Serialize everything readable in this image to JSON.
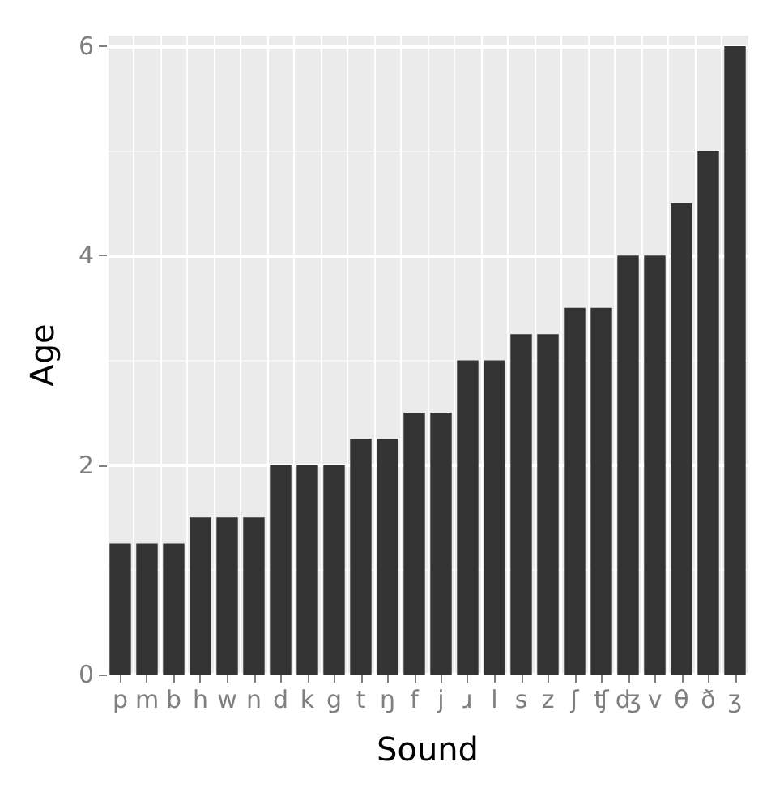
{
  "chart_data": {
    "type": "bar",
    "xlabel": "Sound",
    "ylabel": "Age",
    "categories": [
      "p",
      "m",
      "b",
      "h",
      "w",
      "n",
      "d",
      "k",
      "g",
      "t",
      "ŋ",
      "f",
      "j",
      "ɹ",
      "l",
      "s",
      "z",
      "ʃ",
      "ʧ",
      "ʤ",
      "v",
      "θ",
      "ð",
      "ʒ"
    ],
    "values": [
      1.25,
      1.25,
      1.25,
      1.5,
      1.5,
      1.5,
      2,
      2,
      2,
      2.25,
      2.25,
      2.5,
      2.5,
      3,
      3,
      3.25,
      3.25,
      3.5,
      3.5,
      4,
      4,
      4.5,
      5,
      6
    ],
    "color": "#333333",
    "ylim": [
      0,
      6.1
    ],
    "yticks": [
      0,
      2,
      4,
      6
    ],
    "grid": true
  }
}
